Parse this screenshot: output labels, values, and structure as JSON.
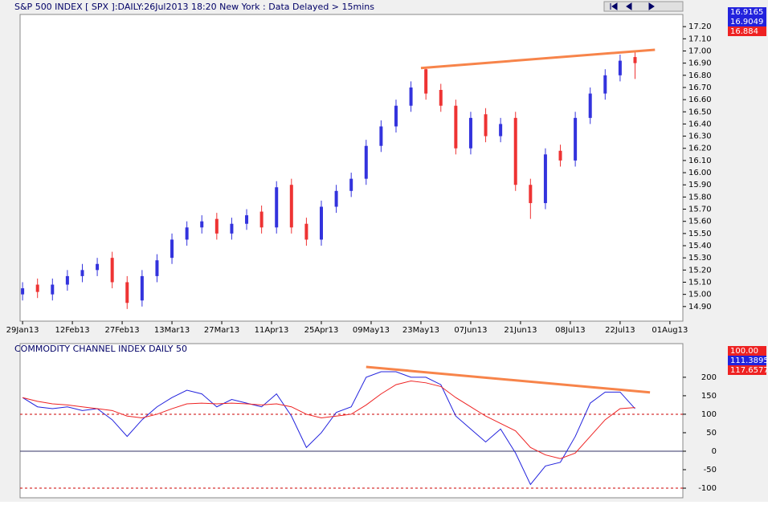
{
  "chart_data": [
    {
      "type": "candlestick",
      "title": "S&P 500 INDEX [ SPX ]:DAILY:26Jul2013 18:20 New York : Data Delayed > 15mins",
      "readouts": [
        {
          "label": "16.9165",
          "color": "#2222dd"
        },
        {
          "label": "16.9049",
          "color": "#2222dd"
        },
        {
          "label": "16.884",
          "color": "#ee2222"
        }
      ],
      "x": [
        0,
        3,
        6,
        9,
        12,
        15,
        18,
        21,
        24,
        27,
        30,
        33,
        36,
        39,
        42,
        45,
        48,
        51,
        54,
        57,
        60,
        63,
        66,
        69,
        72,
        75,
        78,
        81,
        84,
        87,
        90,
        93,
        96,
        99,
        102,
        105,
        108,
        111,
        114,
        117,
        120,
        123
      ],
      "open": [
        15.0,
        15.08,
        15.0,
        15.08,
        15.15,
        15.2,
        15.3,
        15.1,
        14.95,
        15.15,
        15.3,
        15.45,
        15.55,
        15.62,
        15.5,
        15.58,
        15.68,
        15.55,
        15.9,
        15.58,
        15.45,
        15.72,
        15.85,
        15.95,
        16.22,
        16.38,
        16.55,
        16.85,
        16.68,
        16.55,
        16.2,
        16.48,
        16.3,
        16.45,
        15.9,
        15.75,
        16.18,
        16.1,
        16.45,
        16.65,
        16.8,
        16.95
      ],
      "close": [
        15.05,
        15.02,
        15.08,
        15.15,
        15.2,
        15.25,
        15.1,
        14.93,
        15.15,
        15.28,
        15.45,
        15.55,
        15.6,
        15.5,
        15.58,
        15.65,
        15.55,
        15.88,
        15.55,
        15.45,
        15.72,
        15.85,
        15.95,
        16.22,
        16.38,
        16.55,
        16.7,
        16.65,
        16.55,
        16.2,
        16.45,
        16.3,
        16.4,
        15.9,
        15.75,
        16.15,
        16.1,
        16.45,
        16.65,
        16.8,
        16.92,
        16.9
      ],
      "high": [
        15.1,
        15.13,
        15.13,
        15.2,
        15.25,
        15.3,
        15.35,
        15.15,
        15.2,
        15.33,
        15.5,
        15.6,
        15.65,
        15.67,
        15.63,
        15.7,
        15.73,
        15.93,
        15.95,
        15.63,
        15.77,
        15.9,
        16.0,
        16.27,
        16.43,
        16.6,
        16.75,
        16.87,
        16.73,
        16.6,
        16.5,
        16.53,
        16.45,
        16.5,
        15.95,
        16.2,
        16.23,
        16.5,
        16.7,
        16.85,
        16.97,
        17.0
      ],
      "low": [
        14.95,
        14.97,
        14.95,
        15.03,
        15.1,
        15.15,
        15.05,
        14.88,
        14.9,
        15.1,
        15.25,
        15.4,
        15.5,
        15.45,
        15.45,
        15.53,
        15.5,
        15.5,
        15.5,
        15.4,
        15.4,
        15.67,
        15.8,
        15.9,
        16.17,
        16.33,
        16.5,
        16.6,
        16.5,
        16.15,
        16.15,
        16.25,
        16.25,
        15.85,
        15.62,
        15.7,
        16.05,
        16.05,
        16.4,
        16.6,
        16.75,
        16.77
      ],
      "up_color": "#3333dd",
      "down_color": "#ee3333",
      "trendline": {
        "x": [
          80,
          127
        ],
        "values": [
          16.86,
          17.01
        ],
        "color": "#f7844a"
      },
      "xlim": [
        -0.5,
        132.6
      ],
      "xticks": [
        {
          "value": 0,
          "label": "29Jan13"
        },
        {
          "value": 10,
          "label": "12Feb13"
        },
        {
          "value": 20,
          "label": "27Feb13"
        },
        {
          "value": 30,
          "label": "13Mar13"
        },
        {
          "value": 40,
          "label": "27Mar13"
        },
        {
          "value": 50,
          "label": "11Apr13"
        },
        {
          "value": 60,
          "label": "25Apr13"
        },
        {
          "value": 70,
          "label": "09May13"
        },
        {
          "value": 80,
          "label": "23May13"
        },
        {
          "value": 90,
          "label": "07Jun13"
        },
        {
          "value": 100,
          "label": "21Jun13"
        },
        {
          "value": 110,
          "label": "08Jul13"
        },
        {
          "value": 120,
          "label": "22Jul13"
        },
        {
          "value": 130,
          "label": "01Aug13"
        }
      ],
      "ylim": [
        14.78,
        17.3
      ],
      "yticks": [
        {
          "value": 17.2,
          "label": "17.20"
        },
        {
          "value": 17.1,
          "label": "17.10"
        },
        {
          "value": 17,
          "label": "17.00"
        },
        {
          "value": 16.9,
          "label": "16.90"
        },
        {
          "value": 16.8,
          "label": "16.80"
        },
        {
          "value": 16.7,
          "label": "16.70"
        },
        {
          "value": 16.6,
          "label": "16.60"
        },
        {
          "value": 16.5,
          "label": "16.50"
        },
        {
          "value": 16.4,
          "label": "16.40"
        },
        {
          "value": 16.3,
          "label": "16.30"
        },
        {
          "value": 16.2,
          "label": "16.20"
        },
        {
          "value": 16.1,
          "label": "16.10"
        },
        {
          "value": 16,
          "label": "16.00"
        },
        {
          "value": 15.9,
          "label": "15.90"
        },
        {
          "value": 15.8,
          "label": "15.80"
        },
        {
          "value": 15.7,
          "label": "15.70"
        },
        {
          "value": 15.6,
          "label": "15.60"
        },
        {
          "value": 15.5,
          "label": "15.50"
        },
        {
          "value": 15.4,
          "label": "15.40"
        },
        {
          "value": 15.3,
          "label": "15.30"
        },
        {
          "value": 15.2,
          "label": "15.20"
        },
        {
          "value": 15.1,
          "label": "15.10"
        },
        {
          "value": 15,
          "label": "15.00"
        },
        {
          "value": 14.9,
          "label": "14.90"
        }
      ]
    },
    {
      "type": "line",
      "title": "COMMODITY CHANNEL INDEX DAILY 50",
      "readouts": [
        {
          "label": "100.00",
          "color": "#ee2222"
        },
        {
          "label": "111.3895",
          "color": "#2222dd"
        },
        {
          "label": "117.6577",
          "color": "#ee2222"
        }
      ],
      "x": [
        0,
        3,
        6,
        9,
        12,
        15,
        18,
        21,
        24,
        27,
        30,
        33,
        36,
        39,
        42,
        45,
        48,
        51,
        54,
        57,
        60,
        63,
        66,
        69,
        72,
        75,
        78,
        81,
        84,
        87,
        90,
        93,
        96,
        99,
        102,
        105,
        108,
        111,
        114,
        117,
        120,
        123
      ],
      "series": [
        {
          "color": "#2222dd",
          "values": [
            145,
            120,
            115,
            120,
            110,
            115,
            85,
            40,
            85,
            120,
            145,
            165,
            155,
            120,
            140,
            130,
            120,
            155,
            95,
            10,
            50,
            105,
            120,
            200,
            215,
            215,
            200,
            200,
            180,
            95,
            60,
            25,
            60,
            -5,
            -90,
            -40,
            -30,
            40,
            130,
            160,
            160,
            115
          ]
        },
        {
          "color": "#ee2222",
          "values": [
            145,
            135,
            128,
            125,
            120,
            115,
            110,
            95,
            90,
            100,
            115,
            128,
            130,
            128,
            130,
            128,
            125,
            128,
            120,
            100,
            90,
            95,
            100,
            125,
            155,
            180,
            190,
            185,
            175,
            145,
            120,
            95,
            75,
            55,
            10,
            -10,
            -20,
            -5,
            40,
            85,
            115,
            118
          ]
        }
      ],
      "trendline": {
        "x": [
          69,
          126
        ],
        "values": [
          228,
          159
        ],
        "color": "#f7844a"
      },
      "levels": [
        {
          "value": 100,
          "color": "#cc0000",
          "dashed": true
        },
        {
          "value": 0,
          "color": "#333366",
          "dashed": false
        },
        {
          "value": -100,
          "color": "#cc0000",
          "dashed": true
        }
      ],
      "xlim": [
        -0.5,
        132.6
      ],
      "ylim": [
        -126,
        291
      ],
      "yticks": [
        200,
        150,
        100,
        50,
        0,
        -50,
        -100
      ]
    }
  ]
}
